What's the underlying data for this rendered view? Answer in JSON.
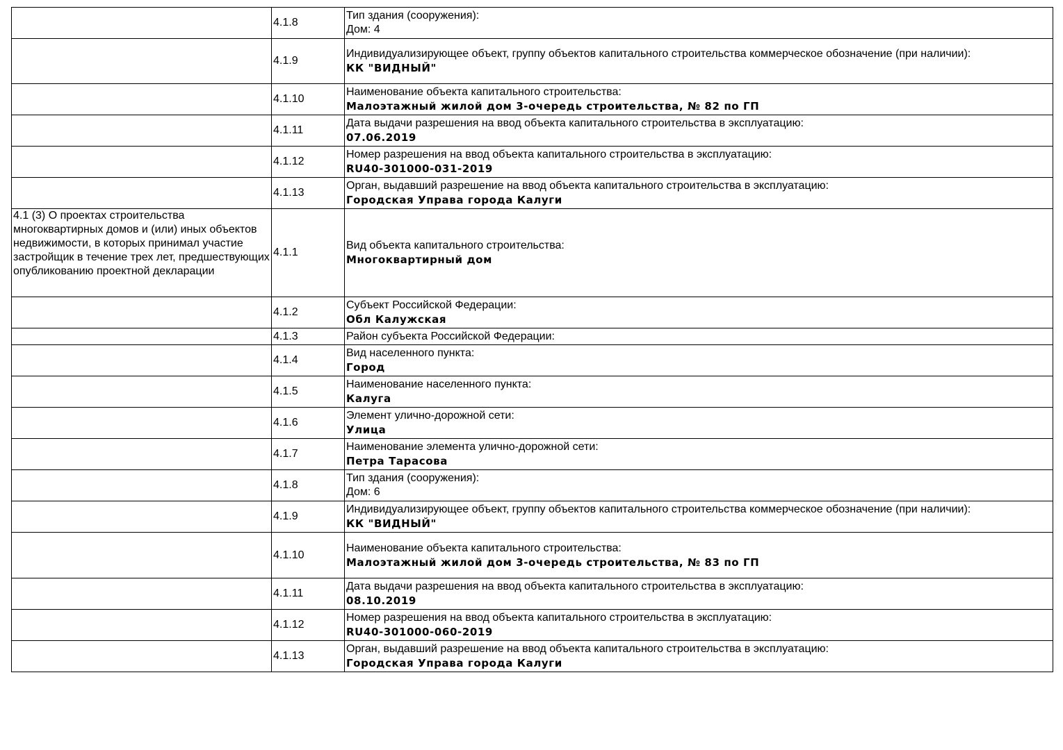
{
  "rows": [
    {
      "section": "",
      "num": "4.1.8",
      "label": "Тип здания (сооружения):",
      "value": "Дом: 4",
      "value_bold": false
    },
    {
      "section": "",
      "num": "4.1.9",
      "label": "Индивидуализирующее объект, группу объектов капитального строительства коммерческое обозначение (при наличии):",
      "value": "КК \"ВИДНЫЙ\"",
      "value_bold": true
    },
    {
      "section": "",
      "num": "4.1.10",
      "label": "Наименование объекта капитального строительства:",
      "value": "Малоэтажный жилой дом 3-очередь строительства, № 82 по ГП",
      "value_bold": true
    },
    {
      "section": "",
      "num": "4.1.11",
      "label": "Дата выдачи разрешения на ввод объекта капитального строительства в эксплуатацию:",
      "value": "07.06.2019",
      "value_bold": true
    },
    {
      "section": "",
      "num": "4.1.12",
      "label": "Номер разрешения на ввод объекта капитального строительства в эксплуатацию:",
      "value": "RU40-301000-031-2019",
      "value_bold": true
    },
    {
      "section": "",
      "num": "4.1.13",
      "label": "Орган, выдавший разрешение на ввод объекта капитального строительства в эксплуатацию:",
      "value": "Городская Управа города Калуги",
      "value_bold": true
    },
    {
      "section": "4.1 (3) О проектах строительства многоквартирных домов и (или) иных объектов недвижимости, в которых принимал участие застройщик в течение трех лет, предшествующих опубликованию проектной декларации",
      "num": "4.1.1",
      "label": "Вид объекта капитального строительства:",
      "value": "Многоквартирный дом",
      "value_bold": true
    },
    {
      "section": "",
      "num": "4.1.2",
      "label": "Субъект Российской Федерации:",
      "value": "Обл Калужская",
      "value_bold": true
    },
    {
      "section": "",
      "num": "4.1.3",
      "label": "Район субъекта Российской Федерации:",
      "value": "",
      "value_bold": true
    },
    {
      "section": "",
      "num": "4.1.4",
      "label": "Вид населенного пункта:",
      "value": "Город",
      "value_bold": true
    },
    {
      "section": "",
      "num": "4.1.5",
      "label": "Наименование населенного пункта:",
      "value": "Калуга",
      "value_bold": true
    },
    {
      "section": "",
      "num": "4.1.6",
      "label": "Элемент улично-дорожной сети:",
      "value": "Улица",
      "value_bold": true
    },
    {
      "section": "",
      "num": "4.1.7",
      "label": "Наименование элемента улично-дорожной сети:",
      "value": "Петра Тарасова",
      "value_bold": true
    },
    {
      "section": "",
      "num": "4.1.8",
      "label": "Тип здания (сооружения):",
      "value": "Дом: 6",
      "value_bold": false
    },
    {
      "section": "",
      "num": "4.1.9",
      "label": "Индивидуализирующее объект, группу объектов капитального строительства коммерческое обозначение (при наличии):",
      "value": "КК \"ВИДНЫЙ\"",
      "value_bold": true
    },
    {
      "section": "",
      "num": "4.1.10",
      "label": "Наименование объекта капитального строительства:",
      "value": "Малоэтажный жилой дом 3-очередь строительства, № 83 по ГП",
      "value_bold": true
    },
    {
      "section": "",
      "num": "4.1.11",
      "label": "Дата выдачи разрешения на ввод объекта капитального строительства в эксплуатацию:",
      "value": "08.10.2019",
      "value_bold": true
    },
    {
      "section": "",
      "num": "4.1.12",
      "label": "Номер разрешения на ввод объекта капитального строительства в эксплуатацию:",
      "value": "RU40-301000-060-2019",
      "value_bold": true
    },
    {
      "section": "",
      "num": "4.1.13",
      "label": "Орган, выдавший разрешение на ввод объекта капитального строительства в эксплуатацию:",
      "value": "Городская Управа города Калуги",
      "value_bold": true
    }
  ]
}
